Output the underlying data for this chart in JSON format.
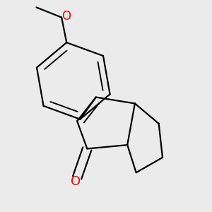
{
  "bg_color": "#ebebeb",
  "line_color": "#000000",
  "o_color": "#ff0000",
  "line_width": 1.6,
  "font_size": 12
}
